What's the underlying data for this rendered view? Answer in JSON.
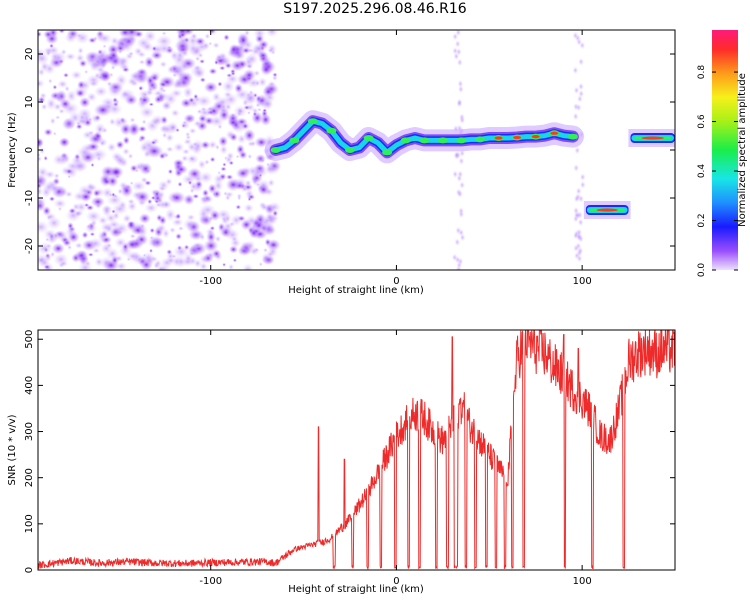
{
  "title": "S197.2025.296.08.46.R16",
  "chart_data": [
    {
      "type": "heatmap",
      "title": "S197.2025.296.08.46.R16",
      "xlabel": "Height of straight line (km)",
      "ylabel": "Frequency (Hz)",
      "xlim": [
        -193,
        150
      ],
      "ylim": [
        -25,
        25
      ],
      "x_ticks": [
        -100,
        0,
        100
      ],
      "y_ticks": [
        -20,
        -10,
        0,
        10,
        20
      ],
      "noise_region": [
        -193,
        -65
      ],
      "ridge": [
        [
          -65,
          0
        ],
        [
          -60,
          0.5
        ],
        [
          -55,
          2
        ],
        [
          -50,
          4
        ],
        [
          -45,
          6
        ],
        [
          -40,
          5.5
        ],
        [
          -35,
          4
        ],
        [
          -30,
          1.5
        ],
        [
          -25,
          0
        ],
        [
          -20,
          0.5
        ],
        [
          -15,
          2.5
        ],
        [
          -10,
          1.5
        ],
        [
          -5,
          -0.5
        ],
        [
          0,
          1
        ],
        [
          5,
          2
        ],
        [
          10,
          2.5
        ],
        [
          15,
          2
        ],
        [
          20,
          2
        ],
        [
          25,
          2
        ],
        [
          30,
          2
        ],
        [
          35,
          2
        ],
        [
          40,
          2.2
        ],
        [
          45,
          2.2
        ],
        [
          50,
          2.5
        ],
        [
          55,
          2.5
        ],
        [
          60,
          2.5
        ],
        [
          65,
          2.6
        ],
        [
          70,
          2.8
        ],
        [
          75,
          2.8
        ],
        [
          80,
          3
        ],
        [
          85,
          3.5
        ],
        [
          90,
          3
        ],
        [
          95,
          2.8
        ]
      ],
      "segments": [
        {
          "x": [
            102,
            125
          ],
          "freq": -12.5
        },
        {
          "x": [
            126,
            150
          ],
          "freq": 2.5
        }
      ],
      "gaps": [
        [
          32,
          35
        ],
        [
          95,
          102
        ]
      ],
      "colorbar": {
        "label": "Normalized spectral amplitude",
        "range": [
          0,
          0.97
        ],
        "ticks": [
          0.0,
          0.2,
          0.4,
          0.6,
          0.8
        ],
        "tick_labels": [
          "0.0",
          "0.2",
          "0.4",
          "0.6",
          "0.8"
        ]
      }
    },
    {
      "type": "line",
      "title": "",
      "xlabel": "Height of straight line (km)",
      "ylabel": "SNR (10 * v/v)",
      "xlim": [
        -193,
        150
      ],
      "ylim": [
        0,
        520
      ],
      "x_ticks": [
        -100,
        0,
        100
      ],
      "y_ticks": [
        0,
        100,
        200,
        300,
        400,
        500
      ],
      "series": [
        {
          "name": "SNR",
          "color": "#ee2a2a",
          "x": [
            -193,
            -175,
            -160,
            -145,
            -130,
            -115,
            -100,
            -85,
            -70,
            -65,
            -55,
            -45,
            -40,
            -35,
            -30,
            -25,
            -20,
            -15,
            -10,
            -5,
            0,
            5,
            10,
            15,
            20,
            25,
            30,
            35,
            40,
            45,
            50,
            55,
            60,
            65,
            70,
            75,
            80,
            85,
            90,
            95,
            100,
            105,
            110,
            115,
            120,
            125,
            130,
            135,
            140,
            145,
            150
          ],
          "values": [
            10,
            20,
            15,
            18,
            15,
            14,
            16,
            17,
            18,
            15,
            45,
            55,
            60,
            70,
            90,
            110,
            140,
            170,
            210,
            250,
            290,
            320,
            340,
            330,
            300,
            280,
            310,
            360,
            310,
            280,
            250,
            220,
            200,
            460,
            500,
            480,
            470,
            440,
            420,
            390,
            370,
            340,
            290,
            280,
            350,
            450,
            470,
            480,
            470,
            480,
            475
          ]
        }
      ],
      "dropouts": [
        [
          -34,
          -33
        ],
        [
          -24,
          -23
        ],
        [
          -16,
          -15
        ],
        [
          -9,
          -8
        ],
        [
          -1,
          0
        ],
        [
          6,
          7
        ],
        [
          12,
          13
        ],
        [
          21,
          22
        ],
        [
          27,
          28
        ],
        [
          31,
          33
        ],
        [
          37,
          38
        ],
        [
          42,
          43
        ],
        [
          48,
          49
        ],
        [
          53,
          54
        ],
        [
          58,
          59
        ],
        [
          62,
          63
        ],
        [
          68,
          69
        ],
        [
          90,
          91
        ],
        [
          105,
          106
        ],
        [
          122,
          123
        ]
      ],
      "spikes": [
        {
          "x": -42,
          "value": 310
        },
        {
          "x": -28,
          "value": 240
        },
        {
          "x": 30,
          "value": 505
        },
        {
          "x": 90,
          "value": 510
        },
        {
          "x": 98,
          "value": 480
        }
      ]
    }
  ]
}
